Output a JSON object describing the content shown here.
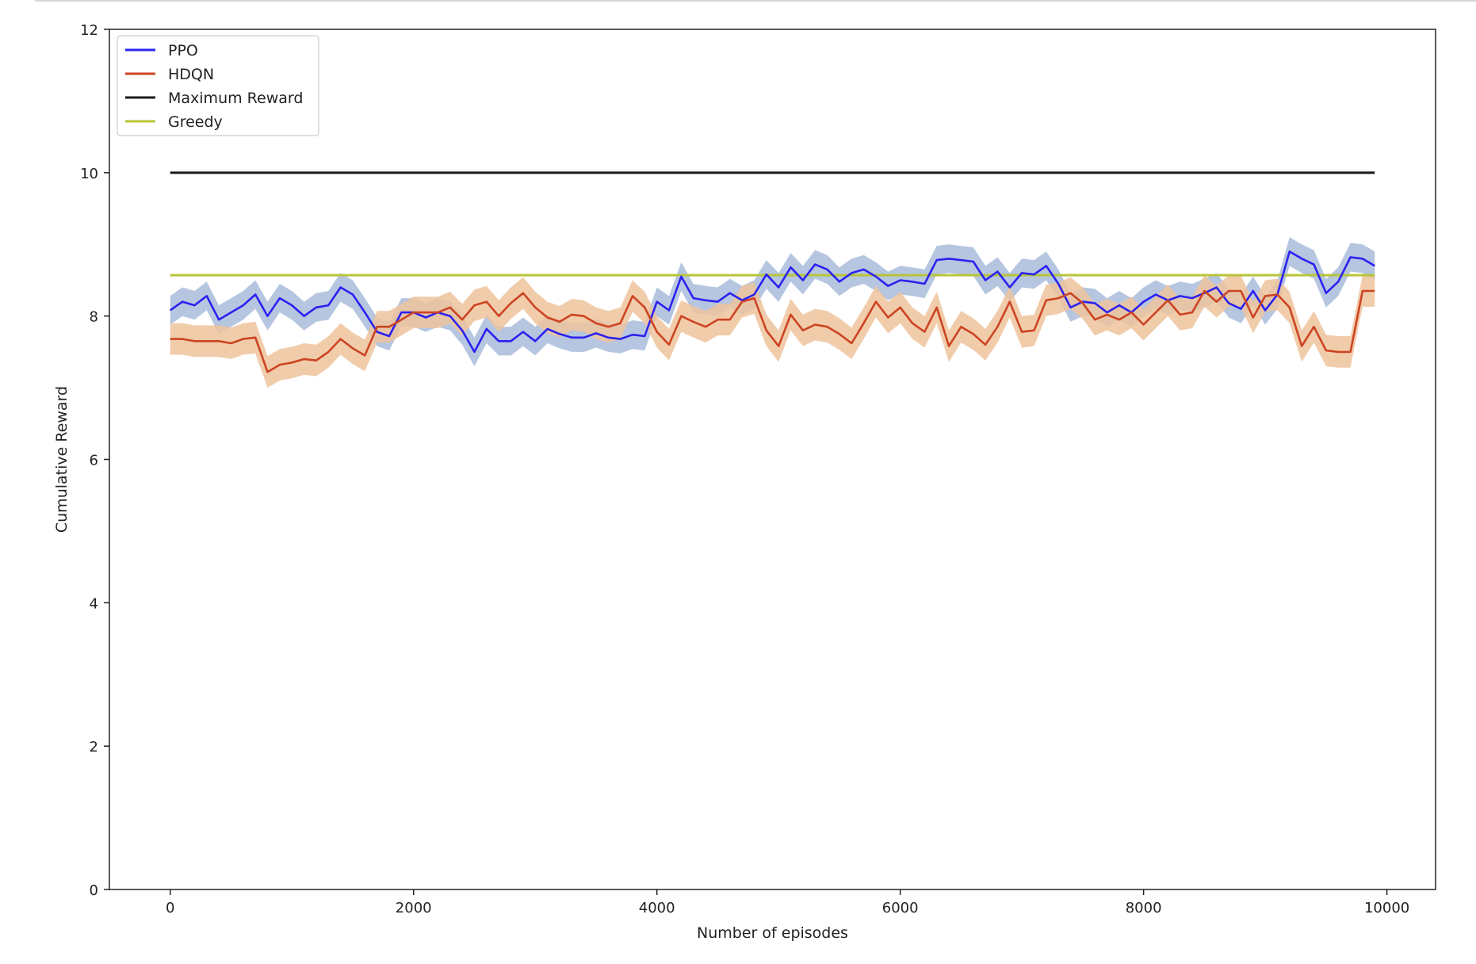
{
  "chart_data": {
    "type": "line",
    "title": "",
    "xlabel": "Number of episodes",
    "ylabel": "Cumulative Reward",
    "xlim": [
      -500,
      10400
    ],
    "ylim": [
      0,
      12
    ],
    "xticks": [
      0,
      2000,
      4000,
      6000,
      8000,
      10000
    ],
    "yticks": [
      0,
      2,
      4,
      6,
      8,
      10,
      12
    ],
    "grid": false,
    "legend_position": "top-left",
    "x": [
      0,
      100,
      200,
      300,
      400,
      500,
      600,
      700,
      800,
      900,
      1000,
      1100,
      1200,
      1300,
      1400,
      1500,
      1600,
      1700,
      1800,
      1900,
      2000,
      2100,
      2200,
      2300,
      2400,
      2500,
      2600,
      2700,
      2800,
      2900,
      3000,
      3100,
      3200,
      3300,
      3400,
      3500,
      3600,
      3700,
      3800,
      3900,
      4000,
      4100,
      4200,
      4300,
      4400,
      4500,
      4600,
      4700,
      4800,
      4900,
      5000,
      5100,
      5200,
      5300,
      5400,
      5500,
      5600,
      5700,
      5800,
      5900,
      6000,
      6100,
      6200,
      6300,
      6400,
      6500,
      6600,
      6700,
      6800,
      6900,
      7000,
      7100,
      7200,
      7300,
      7400,
      7500,
      7600,
      7700,
      7800,
      7900,
      8000,
      8100,
      8200,
      8300,
      8400,
      8500,
      8600,
      8700,
      8800,
      8900,
      9000,
      9100,
      9200,
      9300,
      9400,
      9500,
      9600,
      9700,
      9800,
      9900
    ],
    "series": [
      {
        "name": "PPO",
        "color": "#2b22f0",
        "band_color": "#a9bcdb",
        "band_width": 0.2,
        "values": [
          8.08,
          8.2,
          8.15,
          8.28,
          7.95,
          8.05,
          8.15,
          8.3,
          8.0,
          8.25,
          8.15,
          8.0,
          8.12,
          8.15,
          8.4,
          8.3,
          8.05,
          7.78,
          7.72,
          8.05,
          8.05,
          7.98,
          8.05,
          8.0,
          7.8,
          7.5,
          7.82,
          7.65,
          7.65,
          7.78,
          7.65,
          7.82,
          7.75,
          7.7,
          7.7,
          7.76,
          7.7,
          7.68,
          7.74,
          7.72,
          8.2,
          8.08,
          8.55,
          8.25,
          8.22,
          8.2,
          8.32,
          8.22,
          8.3,
          8.58,
          8.4,
          8.68,
          8.5,
          8.72,
          8.65,
          8.48,
          8.6,
          8.65,
          8.55,
          8.42,
          8.5,
          8.48,
          8.45,
          8.78,
          8.8,
          8.78,
          8.76,
          8.5,
          8.62,
          8.4,
          8.6,
          8.58,
          8.7,
          8.45,
          8.12,
          8.2,
          8.18,
          8.05,
          8.15,
          8.05,
          8.2,
          8.3,
          8.22,
          8.28,
          8.25,
          8.32,
          8.4,
          8.18,
          8.1,
          8.35,
          8.08,
          8.3,
          8.9,
          8.8,
          8.72,
          8.32,
          8.48,
          8.82,
          8.8,
          8.7
        ]
      },
      {
        "name": "HDQN",
        "color": "#cc4422",
        "band_color": "#eec39c",
        "band_width": 0.22,
        "values": [
          7.68,
          7.68,
          7.65,
          7.65,
          7.65,
          7.62,
          7.68,
          7.7,
          7.22,
          7.32,
          7.35,
          7.4,
          7.38,
          7.5,
          7.68,
          7.55,
          7.45,
          7.85,
          7.85,
          7.95,
          8.05,
          8.05,
          8.05,
          8.12,
          7.95,
          8.15,
          8.2,
          8.0,
          8.18,
          8.32,
          8.12,
          7.98,
          7.92,
          8.02,
          8.0,
          7.9,
          7.85,
          7.9,
          8.28,
          8.12,
          7.78,
          7.6,
          8.0,
          7.92,
          7.85,
          7.95,
          7.95,
          8.2,
          8.25,
          7.8,
          7.58,
          8.02,
          7.8,
          7.88,
          7.85,
          7.75,
          7.62,
          7.9,
          8.2,
          7.98,
          8.12,
          7.9,
          7.78,
          8.12,
          7.58,
          7.85,
          7.75,
          7.6,
          7.85,
          8.2,
          7.78,
          7.8,
          8.22,
          8.25,
          8.32,
          8.18,
          7.95,
          8.02,
          7.95,
          8.05,
          7.88,
          8.05,
          8.22,
          8.02,
          8.05,
          8.35,
          8.2,
          8.35,
          8.35,
          7.98,
          8.28,
          8.3,
          8.12,
          7.58,
          7.85,
          7.52,
          7.5,
          7.5,
          8.35,
          8.35
        ]
      }
    ],
    "reference_lines": [
      {
        "name": "Maximum Reward",
        "color": "#1a1a1a",
        "y": 10.0,
        "x_range": [
          0,
          9900
        ]
      },
      {
        "name": "Greedy",
        "color": "#b8c43a",
        "y": 8.57,
        "x_range": [
          0,
          9900
        ]
      }
    ]
  }
}
